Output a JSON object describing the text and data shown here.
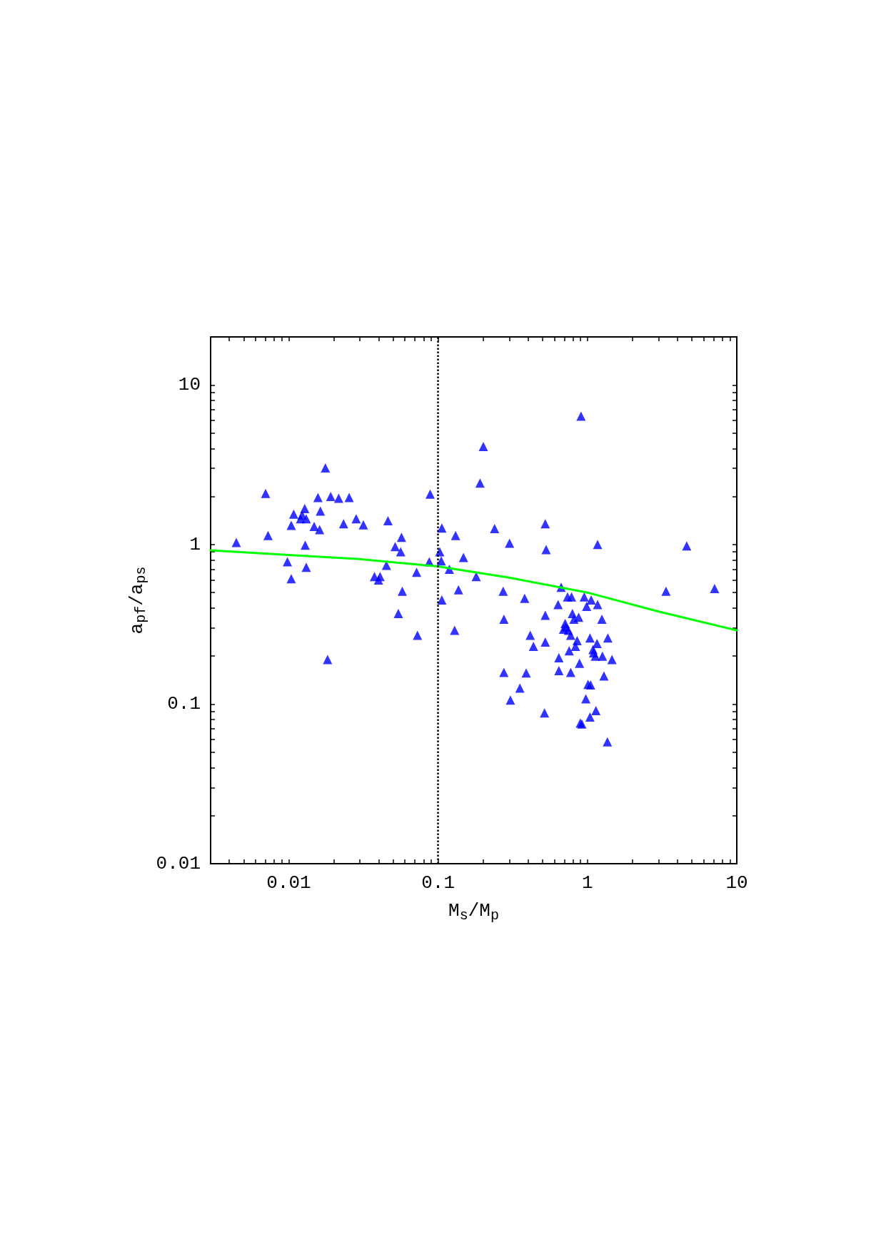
{
  "chart_data": {
    "type": "scatter",
    "xlabel": "M$_{s}$/M$_{p}$",
    "ylabel": "a$_{pf}$/a$_{ps}$",
    "log": "xy",
    "marker": "triangle",
    "xlim": [
      0.003,
      10
    ],
    "ylim": [
      0.01,
      20
    ],
    "xticks": [
      {
        "value": 0.003,
        "label": null
      },
      {
        "value": 0.004,
        "label": null
      },
      {
        "value": 0.005,
        "label": null
      },
      {
        "value": 0.006,
        "label": null
      },
      {
        "value": 0.007,
        "label": null
      },
      {
        "value": 0.008,
        "label": null
      },
      {
        "value": 0.009,
        "label": null
      },
      0.01,
      {
        "value": 0.02,
        "label": null
      },
      {
        "value": 0.03,
        "label": null
      },
      {
        "value": 0.04,
        "label": null
      },
      {
        "value": 0.05,
        "label": null
      },
      {
        "value": 0.06,
        "label": null
      },
      {
        "value": 0.07,
        "label": null
      },
      {
        "value": 0.08,
        "label": null
      },
      {
        "value": 0.09,
        "label": null
      },
      0.1,
      {
        "value": 0.2,
        "label": null
      },
      {
        "value": 0.3,
        "label": null
      },
      {
        "value": 0.4,
        "label": null
      },
      {
        "value": 0.5,
        "label": null
      },
      {
        "value": 0.6,
        "label": null
      },
      {
        "value": 0.7,
        "label": null
      },
      {
        "value": 0.8,
        "label": null
      },
      {
        "value": 0.9,
        "label": null
      },
      1,
      {
        "value": 2,
        "label": null
      },
      {
        "value": 3,
        "label": null
      },
      {
        "value": 4,
        "label": null
      },
      {
        "value": 5,
        "label": null
      },
      {
        "value": 6,
        "label": null
      },
      {
        "value": 7,
        "label": null
      },
      {
        "value": 8,
        "label": null
      },
      {
        "value": 9,
        "label": null
      },
      10
    ],
    "yticks": [
      0.01,
      {
        "value": 0.02,
        "label": null
      },
      {
        "value": 0.03,
        "label": null
      },
      {
        "value": 0.04,
        "label": null
      },
      {
        "value": 0.05,
        "label": null
      },
      {
        "value": 0.06,
        "label": null
      },
      {
        "value": 0.07,
        "label": null
      },
      {
        "value": 0.08,
        "label": null
      },
      {
        "value": 0.09,
        "label": null
      },
      0.1,
      {
        "value": 0.2,
        "label": null
      },
      {
        "value": 0.3,
        "label": null
      },
      {
        "value": 0.4,
        "label": null
      },
      {
        "value": 0.5,
        "label": null
      },
      {
        "value": 0.6,
        "label": null
      },
      {
        "value": 0.7,
        "label": null
      },
      {
        "value": 0.8,
        "label": null
      },
      {
        "value": 0.9,
        "label": null
      },
      1,
      {
        "value": 2,
        "label": null
      },
      {
        "value": 3,
        "label": null
      },
      {
        "value": 4,
        "label": null
      },
      {
        "value": 5,
        "label": null
      },
      {
        "value": 6,
        "label": null
      },
      {
        "value": 7,
        "label": null
      },
      {
        "value": 8,
        "label": null
      },
      {
        "value": 9,
        "label": null
      },
      10
    ],
    "ref_lines": [
      {
        "axis": "x",
        "value": 0.1,
        "label": null,
        "color": "#000000",
        "line_style": "dotted"
      }
    ],
    "series": [
      {
        "color": "#0000ff",
        "x": [
          0.00446,
          0.007,
          0.00727,
          0.0098,
          0.0104,
          0.0104,
          0.0108,
          0.012,
          0.0123,
          0.0128,
          0.0131,
          0.0129,
          0.0131,
          0.0148,
          0.0157,
          0.0163,
          0.0161,
          0.0176,
          0.0182,
          0.0191,
          0.0216,
          0.0233,
          0.0254,
          0.0283,
          0.0316,
          0.0375,
          0.0399,
          0.0409,
          0.0451,
          0.0462,
          0.0516,
          0.0542,
          0.0562,
          0.0569,
          0.0576,
          0.0728,
          0.0718,
          0.0885,
          0.0873,
          0.1026,
          0.105,
          0.106,
          0.106,
          0.119,
          0.129,
          0.131,
          0.137,
          0.148,
          0.18,
          0.191,
          0.201,
          0.239,
          0.273,
          0.276,
          0.276,
          0.301,
          0.305,
          0.353,
          0.38,
          0.389,
          0.414,
          0.435,
          0.516,
          0.522,
          0.522,
          0.522,
          0.529,
          0.636,
          0.644,
          0.644,
          0.667,
          0.692,
          0.709,
          0.718,
          0.736,
          0.745,
          0.755,
          0.773,
          0.773,
          0.783,
          0.793,
          0.812,
          0.832,
          0.853,
          0.874,
          0.885,
          0.906,
          0.896,
          0.918,
          0.952,
          0.976,
          0.988,
          1.01,
          1.04,
          1.04,
          1.05,
          1.06,
          1.09,
          1.1,
          1.13,
          1.14,
          1.16,
          1.17,
          1.17,
          1.25,
          1.26,
          1.29,
          1.36,
          1.37,
          1.46,
          3.36,
          4.62,
          7.1
        ],
        "values": [
          1.03,
          2.09,
          1.14,
          0.78,
          0.61,
          1.32,
          1.55,
          1.45,
          1.53,
          1.68,
          1.45,
          0.99,
          0.72,
          1.3,
          1.97,
          1.62,
          1.24,
          3.02,
          0.19,
          2.0,
          1.95,
          1.35,
          1.97,
          1.45,
          1.33,
          0.63,
          0.6,
          0.63,
          0.74,
          1.41,
          0.97,
          0.37,
          0.9,
          1.11,
          0.51,
          0.27,
          0.67,
          2.07,
          0.78,
          0.9,
          0.79,
          0.45,
          1.27,
          0.7,
          0.29,
          1.14,
          0.52,
          0.83,
          0.63,
          2.43,
          4.12,
          1.26,
          0.51,
          0.34,
          0.158,
          1.02,
          0.106,
          0.126,
          0.46,
          0.157,
          0.27,
          0.23,
          0.088,
          0.36,
          0.245,
          1.35,
          0.93,
          0.42,
          0.195,
          0.162,
          0.54,
          0.295,
          0.32,
          0.305,
          0.47,
          0.29,
          0.216,
          0.158,
          0.27,
          0.47,
          0.37,
          0.34,
          0.23,
          0.25,
          0.35,
          0.18,
          6.38,
          0.076,
          0.075,
          0.47,
          0.108,
          0.41,
          0.133,
          0.26,
          0.083,
          0.132,
          0.45,
          0.22,
          0.21,
          0.2,
          0.091,
          0.24,
          0.42,
          1.0,
          0.34,
          0.2,
          0.15,
          0.058,
          0.26,
          0.19,
          0.51,
          0.98,
          0.53
        ]
      },
      {
        "type": "line",
        "color": "#00ff00",
        "marker": "none",
        "line_style": "solid",
        "x": [
          0.003,
          0.01,
          0.03,
          0.1,
          0.3,
          1,
          3,
          10
        ],
        "values": [
          0.92,
          0.86,
          0.81,
          0.73,
          0.62,
          0.5,
          0.38,
          0.29
        ]
      }
    ]
  }
}
